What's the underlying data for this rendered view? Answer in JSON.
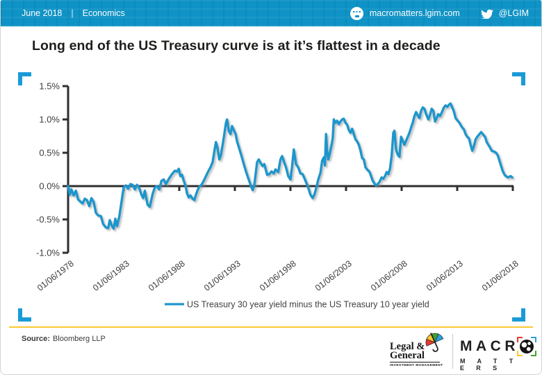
{
  "header": {
    "date": "June 2018",
    "separator": "|",
    "section": "Economics",
    "website": "macromatters.lgim.com",
    "twitter_handle": "@LGIM"
  },
  "title": "Long end of the US Treasury curve is at it’s flattest in a decade",
  "source": {
    "label": "Source:",
    "text": "Bloomberg LLP"
  },
  "footer": {
    "lg_line1": "Legal &",
    "lg_line2": "General",
    "lg_sub": "INVESTMENT MANAGEMENT",
    "brand_name": "MACRO MATTERS",
    "brand_line1": "MACR",
    "brand_line2": "M A T T E R S"
  },
  "colors": {
    "header_blue": "#0f93c6",
    "line_blue": "#1e96cc",
    "bracket_blue": "#1a9bd7",
    "divider_yellow": "#fdc82f",
    "axis_dark": "#2e2e2e"
  },
  "chart_data": {
    "type": "line",
    "title": "Long end of the US Treasury curve is at it’s flattest in a decade",
    "xlabel": "",
    "ylabel": "",
    "y_unit": "%",
    "ylim": [
      -1.0,
      1.5
    ],
    "xlim_years": [
      1978,
      2018
    ],
    "grid": false,
    "legend_position": "bottom",
    "y_ticks": [
      {
        "label": "1.5%",
        "value": 1.5
      },
      {
        "label": "1.0%",
        "value": 1.0
      },
      {
        "label": "0.5%",
        "value": 0.5
      },
      {
        "label": "0.0%",
        "value": 0.0
      },
      {
        "label": "-0.5%",
        "value": -0.5
      },
      {
        "label": "-1.0%",
        "value": -1.0
      }
    ],
    "x_ticks": [
      {
        "label": "01/06/1978",
        "value": 1978
      },
      {
        "label": "01/06/1983",
        "value": 1983
      },
      {
        "label": "01/06/1988",
        "value": 1988
      },
      {
        "label": "01/06/1993",
        "value": 1993
      },
      {
        "label": "01/06/1998",
        "value": 1998
      },
      {
        "label": "01/06/2003",
        "value": 2003
      },
      {
        "label": "01/06/2008",
        "value": 2008
      },
      {
        "label": "01/06/2013",
        "value": 2013
      },
      {
        "label": "01/06/2018",
        "value": 2018
      }
    ],
    "series": [
      {
        "name": "US Treasury 30 year yield minus the US Treasury 10 year yield",
        "color": "#1e96cc",
        "points": [
          [
            1978.0,
            0.0
          ],
          [
            1978.15,
            -0.13
          ],
          [
            1978.3,
            -0.05
          ],
          [
            1978.5,
            -0.14
          ],
          [
            1978.7,
            -0.07
          ],
          [
            1978.9,
            -0.2
          ],
          [
            1979.1,
            -0.23
          ],
          [
            1979.3,
            -0.26
          ],
          [
            1979.5,
            -0.19
          ],
          [
            1979.7,
            -0.21
          ],
          [
            1979.9,
            -0.3
          ],
          [
            1980.1,
            -0.18
          ],
          [
            1980.3,
            -0.24
          ],
          [
            1980.5,
            -0.4
          ],
          [
            1980.7,
            -0.44
          ],
          [
            1980.95,
            -0.45
          ],
          [
            1981.15,
            -0.57
          ],
          [
            1981.4,
            -0.62
          ],
          [
            1981.6,
            -0.63
          ],
          [
            1981.75,
            -0.51
          ],
          [
            1981.95,
            -0.6
          ],
          [
            1982.1,
            -0.64
          ],
          [
            1982.25,
            -0.49
          ],
          [
            1982.4,
            -0.6
          ],
          [
            1982.6,
            -0.46
          ],
          [
            1982.8,
            -0.24
          ],
          [
            1983.0,
            -0.02
          ],
          [
            1983.2,
            0.01
          ],
          [
            1983.4,
            -0.04
          ],
          [
            1983.6,
            0.03
          ],
          [
            1983.8,
            0.02
          ],
          [
            1984.0,
            -0.05
          ],
          [
            1984.2,
            0.02
          ],
          [
            1984.4,
            -0.03
          ],
          [
            1984.6,
            -0.13
          ],
          [
            1984.75,
            -0.18
          ],
          [
            1984.9,
            -0.07
          ],
          [
            1985.15,
            -0.28
          ],
          [
            1985.35,
            -0.31
          ],
          [
            1985.6,
            -0.12
          ],
          [
            1985.8,
            -0.02
          ],
          [
            1986.0,
            0.0
          ],
          [
            1986.2,
            -0.05
          ],
          [
            1986.4,
            0.08
          ],
          [
            1986.6,
            0.1
          ],
          [
            1986.8,
            0.03
          ],
          [
            1987.1,
            0.12
          ],
          [
            1987.35,
            0.18
          ],
          [
            1987.6,
            0.23
          ],
          [
            1987.8,
            0.22
          ],
          [
            1987.95,
            0.26
          ],
          [
            1988.1,
            0.15
          ],
          [
            1988.25,
            0.17
          ],
          [
            1988.4,
            0.08
          ],
          [
            1988.55,
            0.01
          ],
          [
            1988.7,
            -0.11
          ],
          [
            1988.85,
            -0.17
          ],
          [
            1989.0,
            -0.14
          ],
          [
            1989.2,
            -0.19
          ],
          [
            1989.35,
            -0.21
          ],
          [
            1989.5,
            -0.13
          ],
          [
            1989.65,
            -0.06
          ],
          [
            1989.8,
            -0.01
          ],
          [
            1990.0,
            0.02
          ],
          [
            1990.2,
            0.08
          ],
          [
            1990.4,
            0.15
          ],
          [
            1990.6,
            0.22
          ],
          [
            1990.8,
            0.28
          ],
          [
            1991.0,
            0.36
          ],
          [
            1991.15,
            0.52
          ],
          [
            1991.3,
            0.66
          ],
          [
            1991.45,
            0.56
          ],
          [
            1991.6,
            0.4
          ],
          [
            1991.75,
            0.47
          ],
          [
            1991.9,
            0.62
          ],
          [
            1992.05,
            0.78
          ],
          [
            1992.2,
            0.95
          ],
          [
            1992.3,
            1.0
          ],
          [
            1992.45,
            0.83
          ],
          [
            1992.6,
            0.78
          ],
          [
            1992.75,
            0.9
          ],
          [
            1992.9,
            0.84
          ],
          [
            1993.05,
            0.79
          ],
          [
            1993.2,
            0.67
          ],
          [
            1993.4,
            0.56
          ],
          [
            1993.6,
            0.45
          ],
          [
            1993.8,
            0.33
          ],
          [
            1994.0,
            0.22
          ],
          [
            1994.2,
            0.12
          ],
          [
            1994.45,
            0.0
          ],
          [
            1994.6,
            -0.06
          ],
          [
            1994.75,
            0.02
          ],
          [
            1995.0,
            0.36
          ],
          [
            1995.15,
            0.4
          ],
          [
            1995.3,
            0.35
          ],
          [
            1995.5,
            0.3
          ],
          [
            1995.65,
            0.33
          ],
          [
            1995.9,
            0.17
          ],
          [
            1996.1,
            0.18
          ],
          [
            1996.3,
            0.22
          ],
          [
            1996.5,
            0.19
          ],
          [
            1996.65,
            0.25
          ],
          [
            1996.9,
            0.21
          ],
          [
            1997.1,
            0.4
          ],
          [
            1997.25,
            0.45
          ],
          [
            1997.45,
            0.35
          ],
          [
            1997.6,
            0.28
          ],
          [
            1997.8,
            0.15
          ],
          [
            1998.0,
            0.1
          ],
          [
            1998.15,
            0.3
          ],
          [
            1998.3,
            0.55
          ],
          [
            1998.5,
            0.33
          ],
          [
            1998.7,
            0.28
          ],
          [
            1998.9,
            0.19
          ],
          [
            1999.1,
            0.18
          ],
          [
            1999.35,
            0.08
          ],
          [
            1999.55,
            0.0
          ],
          [
            1999.8,
            -0.13
          ],
          [
            2000.0,
            -0.18
          ],
          [
            2000.15,
            -0.13
          ],
          [
            2000.3,
            -0.04
          ],
          [
            2000.5,
            0.1
          ],
          [
            2000.7,
            0.2
          ],
          [
            2000.85,
            0.38
          ],
          [
            2001.0,
            0.43
          ],
          [
            2001.1,
            0.31
          ],
          [
            2001.2,
            0.78
          ],
          [
            2001.3,
            0.52
          ],
          [
            2001.4,
            0.4
          ],
          [
            2001.55,
            0.5
          ],
          [
            2001.7,
            0.62
          ],
          [
            2001.8,
            0.72
          ],
          [
            2001.9,
            1.0
          ],
          [
            2002.05,
            0.95
          ],
          [
            2002.2,
            0.98
          ],
          [
            2002.35,
            0.93
          ],
          [
            2002.5,
            0.97
          ],
          [
            2002.65,
            1.0
          ],
          [
            2002.8,
            1.01
          ],
          [
            2002.95,
            0.95
          ],
          [
            2003.1,
            0.92
          ],
          [
            2003.25,
            0.84
          ],
          [
            2003.4,
            0.8
          ],
          [
            2003.55,
            0.86
          ],
          [
            2003.7,
            0.78
          ],
          [
            2003.85,
            0.7
          ],
          [
            2004.0,
            0.67
          ],
          [
            2004.15,
            0.62
          ],
          [
            2004.3,
            0.53
          ],
          [
            2004.45,
            0.42
          ],
          [
            2004.6,
            0.4
          ],
          [
            2004.75,
            0.28
          ],
          [
            2004.95,
            0.24
          ],
          [
            2005.1,
            0.22
          ],
          [
            2005.25,
            0.15
          ],
          [
            2005.4,
            0.08
          ],
          [
            2005.55,
            0.04
          ],
          [
            2005.7,
            0.01
          ],
          [
            2005.85,
            0.03
          ],
          [
            2006.0,
            0.06
          ],
          [
            2006.2,
            0.13
          ],
          [
            2006.35,
            0.11
          ],
          [
            2006.5,
            0.15
          ],
          [
            2006.65,
            0.21
          ],
          [
            2006.8,
            0.18
          ],
          [
            2006.95,
            0.26
          ],
          [
            2007.1,
            0.45
          ],
          [
            2007.25,
            0.8
          ],
          [
            2007.35,
            0.83
          ],
          [
            2007.5,
            0.55
          ],
          [
            2007.65,
            0.47
          ],
          [
            2007.8,
            0.44
          ],
          [
            2007.95,
            0.74
          ],
          [
            2008.1,
            0.68
          ],
          [
            2008.25,
            0.62
          ],
          [
            2008.4,
            0.68
          ],
          [
            2008.55,
            0.74
          ],
          [
            2008.7,
            0.8
          ],
          [
            2008.85,
            0.88
          ],
          [
            2009.0,
            0.95
          ],
          [
            2009.15,
            1.05
          ],
          [
            2009.3,
            1.11
          ],
          [
            2009.45,
            1.06
          ],
          [
            2009.6,
            1.02
          ],
          [
            2009.75,
            1.13
          ],
          [
            2009.9,
            1.18
          ],
          [
            2010.05,
            1.16
          ],
          [
            2010.2,
            1.08
          ],
          [
            2010.4,
            1.0
          ],
          [
            2010.55,
            1.07
          ],
          [
            2010.7,
            1.16
          ],
          [
            2010.85,
            1.13
          ],
          [
            2011.0,
            0.97
          ],
          [
            2011.15,
            1.02
          ],
          [
            2011.3,
            1.08
          ],
          [
            2011.45,
            1.05
          ],
          [
            2011.6,
            1.1
          ],
          [
            2011.8,
            1.18
          ],
          [
            2011.95,
            1.21
          ],
          [
            2012.1,
            1.19
          ],
          [
            2012.25,
            1.22
          ],
          [
            2012.4,
            1.24
          ],
          [
            2012.55,
            1.18
          ],
          [
            2012.7,
            1.12
          ],
          [
            2012.85,
            1.02
          ],
          [
            2013.0,
            0.99
          ],
          [
            2013.2,
            0.95
          ],
          [
            2013.4,
            0.89
          ],
          [
            2013.6,
            0.85
          ],
          [
            2013.75,
            0.78
          ],
          [
            2013.9,
            0.74
          ],
          [
            2014.05,
            0.72
          ],
          [
            2014.2,
            0.62
          ],
          [
            2014.35,
            0.53
          ],
          [
            2014.5,
            0.6
          ],
          [
            2014.65,
            0.7
          ],
          [
            2014.8,
            0.74
          ],
          [
            2015.0,
            0.78
          ],
          [
            2015.15,
            0.81
          ],
          [
            2015.35,
            0.77
          ],
          [
            2015.5,
            0.74
          ],
          [
            2015.65,
            0.66
          ],
          [
            2015.8,
            0.62
          ],
          [
            2015.95,
            0.58
          ],
          [
            2016.1,
            0.53
          ],
          [
            2016.3,
            0.52
          ],
          [
            2016.5,
            0.5
          ],
          [
            2016.65,
            0.46
          ],
          [
            2016.8,
            0.38
          ],
          [
            2016.95,
            0.3
          ],
          [
            2017.1,
            0.22
          ],
          [
            2017.3,
            0.16
          ],
          [
            2017.55,
            0.13
          ],
          [
            2017.8,
            0.15
          ],
          [
            2017.95,
            0.13
          ]
        ]
      }
    ]
  }
}
